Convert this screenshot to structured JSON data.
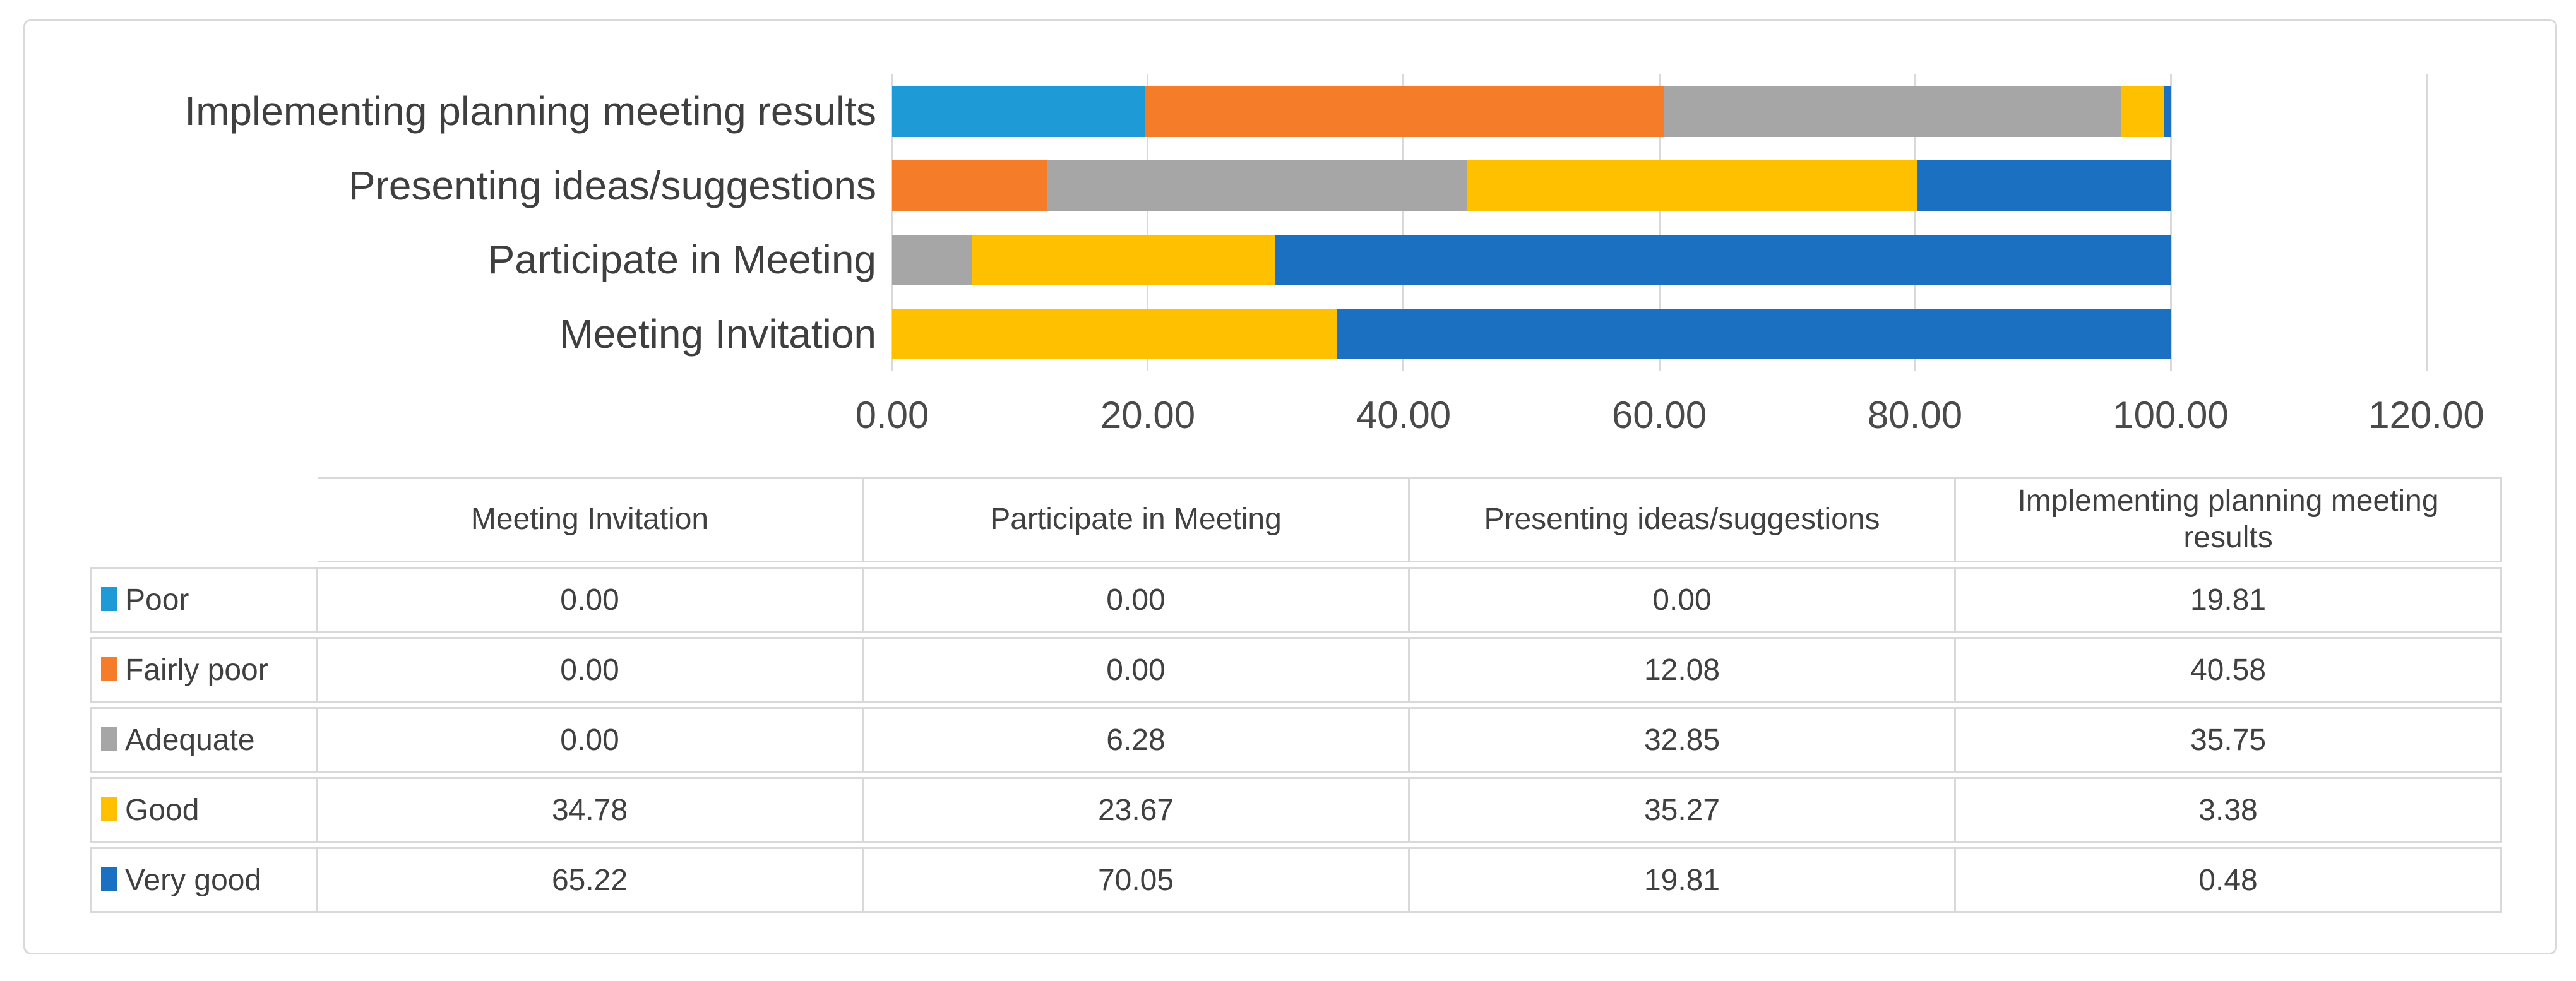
{
  "figure": {
    "background": "#FFFFFF",
    "border_color": "#D9D9D9",
    "gridline_color": "#D9D9D9",
    "label_text_color": "#3F3F3F",
    "table_text_color": "#404040"
  },
  "chart_data": {
    "type": "bar",
    "subtype": "stacked-horizontal",
    "title": "",
    "xlabel": "",
    "ylabel": "",
    "xlim": [
      0,
      120
    ],
    "x_ticks": [
      "0.00",
      "20.00",
      "40.00",
      "60.00",
      "80.00",
      "100.00",
      "120.00"
    ],
    "grid": true,
    "legend_position": "data-table-below",
    "categories": [
      "Meeting Invitation",
      "Participate in Meeting",
      "Presenting ideas/suggestions",
      "Implementing planning meeting results"
    ],
    "categories_top_to_bottom": [
      "Implementing planning meeting results",
      "Presenting ideas/suggestions",
      "Participate in Meeting",
      "Meeting Invitation"
    ],
    "series": [
      {
        "name": "Poor",
        "color": "#1E9BD7",
        "values": [
          0.0,
          0.0,
          0.0,
          19.81
        ]
      },
      {
        "name": "Fairly poor",
        "color": "#F57C28",
        "values": [
          0.0,
          0.0,
          12.08,
          40.58
        ]
      },
      {
        "name": "Adequate",
        "color": "#A6A6A6",
        "values": [
          0.0,
          6.28,
          32.85,
          35.75
        ]
      },
      {
        "name": "Good",
        "color": "#FFC000",
        "values": [
          34.78,
          23.67,
          35.27,
          3.38
        ]
      },
      {
        "name": "Very good",
        "color": "#1C70C2",
        "values": [
          65.22,
          70.05,
          19.81,
          0.48
        ]
      }
    ]
  },
  "table": {
    "corner_label": "",
    "columns": [
      "Meeting Invitation",
      "Participate in Meeting",
      "Presenting ideas/suggestions",
      "Implementing planning meeting results"
    ],
    "rows": [
      {
        "label": "Poor",
        "swatch_color": "#1E9BD7",
        "values": [
          "0.00",
          "0.00",
          "0.00",
          "19.81"
        ]
      },
      {
        "label": "Fairly poor",
        "swatch_color": "#F57C28",
        "values": [
          "0.00",
          "0.00",
          "12.08",
          "40.58"
        ]
      },
      {
        "label": "Adequate",
        "swatch_color": "#A6A6A6",
        "values": [
          "0.00",
          "6.28",
          "32.85",
          "35.75"
        ]
      },
      {
        "label": "Good",
        "swatch_color": "#FFC000",
        "values": [
          "34.78",
          "23.67",
          "35.27",
          "3.38"
        ]
      },
      {
        "label": "Very good",
        "swatch_color": "#1C70C2",
        "values": [
          "65.22",
          "70.05",
          "19.81",
          "0.48"
        ]
      }
    ]
  }
}
